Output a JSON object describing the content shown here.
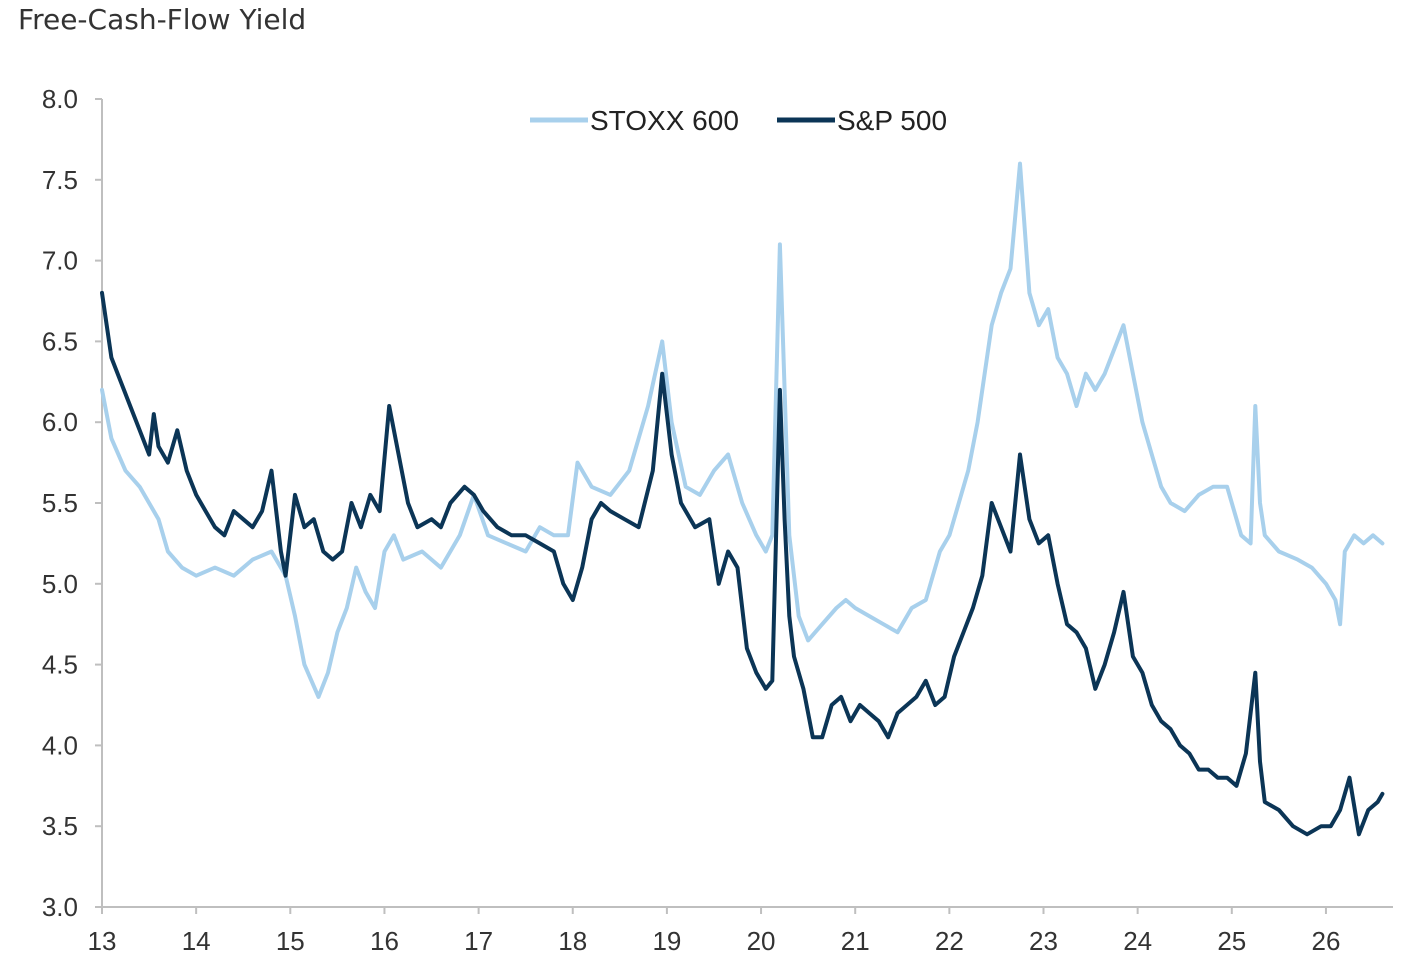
{
  "page": {
    "title": "Free-Cash-Flow Yield"
  },
  "colors": {
    "stoxx600": "#a8d0ec",
    "sp500": "#0b3556",
    "axis": "#bfbfbf",
    "text": "#333333"
  },
  "chart_data": {
    "type": "line",
    "title": "Free-Cash-Flow Yield",
    "xlabel": "",
    "ylabel": "",
    "x_ticks": [
      "13",
      "14",
      "15",
      "16",
      "17",
      "18",
      "19",
      "20",
      "21",
      "22",
      "23",
      "24",
      "25",
      "26"
    ],
    "y_ticks": [
      "3.0",
      "3.5",
      "4.0",
      "4.5",
      "5.0",
      "5.5",
      "6.0",
      "6.5",
      "7.0",
      "7.5",
      "8.0"
    ],
    "xlim": [
      13,
      26.6
    ],
    "ylim": [
      3.0,
      8.0
    ],
    "grid": false,
    "legend": "top-center",
    "series": [
      {
        "name": "STOXX 600",
        "color": "#a8d0ec",
        "points": [
          [
            13.0,
            6.2
          ],
          [
            13.1,
            5.9
          ],
          [
            13.25,
            5.7
          ],
          [
            13.4,
            5.6
          ],
          [
            13.5,
            5.5
          ],
          [
            13.6,
            5.4
          ],
          [
            13.7,
            5.2
          ],
          [
            13.85,
            5.1
          ],
          [
            14.0,
            5.05
          ],
          [
            14.2,
            5.1
          ],
          [
            14.4,
            5.05
          ],
          [
            14.6,
            5.15
          ],
          [
            14.8,
            5.2
          ],
          [
            14.95,
            5.05
          ],
          [
            15.05,
            4.8
          ],
          [
            15.15,
            4.5
          ],
          [
            15.3,
            4.3
          ],
          [
            15.4,
            4.45
          ],
          [
            15.5,
            4.7
          ],
          [
            15.6,
            4.85
          ],
          [
            15.7,
            5.1
          ],
          [
            15.8,
            4.95
          ],
          [
            15.9,
            4.85
          ],
          [
            16.0,
            5.2
          ],
          [
            16.1,
            5.3
          ],
          [
            16.2,
            5.15
          ],
          [
            16.4,
            5.2
          ],
          [
            16.6,
            5.1
          ],
          [
            16.8,
            5.3
          ],
          [
            16.95,
            5.55
          ],
          [
            17.1,
            5.3
          ],
          [
            17.3,
            5.25
          ],
          [
            17.5,
            5.2
          ],
          [
            17.65,
            5.35
          ],
          [
            17.8,
            5.3
          ],
          [
            17.95,
            5.3
          ],
          [
            18.05,
            5.75
          ],
          [
            18.2,
            5.6
          ],
          [
            18.4,
            5.55
          ],
          [
            18.6,
            5.7
          ],
          [
            18.8,
            6.1
          ],
          [
            18.95,
            6.5
          ],
          [
            19.05,
            6.0
          ],
          [
            19.2,
            5.6
          ],
          [
            19.35,
            5.55
          ],
          [
            19.5,
            5.7
          ],
          [
            19.65,
            5.8
          ],
          [
            19.8,
            5.5
          ],
          [
            19.95,
            5.3
          ],
          [
            20.05,
            5.2
          ],
          [
            20.12,
            5.3
          ],
          [
            20.2,
            7.1
          ],
          [
            20.25,
            6.2
          ],
          [
            20.3,
            5.3
          ],
          [
            20.4,
            4.8
          ],
          [
            20.5,
            4.65
          ],
          [
            20.65,
            4.75
          ],
          [
            20.8,
            4.85
          ],
          [
            20.9,
            4.9
          ],
          [
            21.0,
            4.85
          ],
          [
            21.15,
            4.8
          ],
          [
            21.3,
            4.75
          ],
          [
            21.45,
            4.7
          ],
          [
            21.6,
            4.85
          ],
          [
            21.75,
            4.9
          ],
          [
            21.9,
            5.2
          ],
          [
            22.0,
            5.3
          ],
          [
            22.1,
            5.5
          ],
          [
            22.2,
            5.7
          ],
          [
            22.3,
            6.0
          ],
          [
            22.45,
            6.6
          ],
          [
            22.55,
            6.8
          ],
          [
            22.65,
            6.95
          ],
          [
            22.75,
            7.6
          ],
          [
            22.85,
            6.8
          ],
          [
            22.95,
            6.6
          ],
          [
            23.05,
            6.7
          ],
          [
            23.15,
            6.4
          ],
          [
            23.25,
            6.3
          ],
          [
            23.35,
            6.1
          ],
          [
            23.45,
            6.3
          ],
          [
            23.55,
            6.2
          ],
          [
            23.65,
            6.3
          ],
          [
            23.75,
            6.45
          ],
          [
            23.85,
            6.6
          ],
          [
            23.95,
            6.3
          ],
          [
            24.05,
            6.0
          ],
          [
            24.15,
            5.8
          ],
          [
            24.25,
            5.6
          ],
          [
            24.35,
            5.5
          ],
          [
            24.5,
            5.45
          ],
          [
            24.65,
            5.55
          ],
          [
            24.8,
            5.6
          ],
          [
            24.95,
            5.6
          ],
          [
            25.1,
            5.3
          ],
          [
            25.2,
            5.25
          ],
          [
            25.25,
            6.1
          ],
          [
            25.3,
            5.5
          ],
          [
            25.35,
            5.3
          ],
          [
            25.5,
            5.2
          ],
          [
            25.7,
            5.15
          ],
          [
            25.85,
            5.1
          ],
          [
            26.0,
            5.0
          ],
          [
            26.1,
            4.9
          ],
          [
            26.15,
            4.75
          ],
          [
            26.2,
            5.2
          ],
          [
            26.3,
            5.3
          ],
          [
            26.4,
            5.25
          ],
          [
            26.5,
            5.3
          ],
          [
            26.6,
            5.25
          ]
        ]
      },
      {
        "name": "S&P 500",
        "color": "#0b3556",
        "points": [
          [
            13.0,
            6.8
          ],
          [
            13.05,
            6.6
          ],
          [
            13.1,
            6.4
          ],
          [
            13.2,
            6.25
          ],
          [
            13.3,
            6.1
          ],
          [
            13.4,
            5.95
          ],
          [
            13.5,
            5.8
          ],
          [
            13.55,
            6.05
          ],
          [
            13.6,
            5.85
          ],
          [
            13.7,
            5.75
          ],
          [
            13.8,
            5.95
          ],
          [
            13.9,
            5.7
          ],
          [
            14.0,
            5.55
          ],
          [
            14.1,
            5.45
          ],
          [
            14.2,
            5.35
          ],
          [
            14.3,
            5.3
          ],
          [
            14.4,
            5.45
          ],
          [
            14.5,
            5.4
          ],
          [
            14.6,
            5.35
          ],
          [
            14.7,
            5.45
          ],
          [
            14.8,
            5.7
          ],
          [
            14.9,
            5.2
          ],
          [
            14.95,
            5.05
          ],
          [
            15.05,
            5.55
          ],
          [
            15.15,
            5.35
          ],
          [
            15.25,
            5.4
          ],
          [
            15.35,
            5.2
          ],
          [
            15.45,
            5.15
          ],
          [
            15.55,
            5.2
          ],
          [
            15.65,
            5.5
          ],
          [
            15.75,
            5.35
          ],
          [
            15.85,
            5.55
          ],
          [
            15.95,
            5.45
          ],
          [
            16.05,
            6.1
          ],
          [
            16.15,
            5.8
          ],
          [
            16.25,
            5.5
          ],
          [
            16.35,
            5.35
          ],
          [
            16.5,
            5.4
          ],
          [
            16.6,
            5.35
          ],
          [
            16.7,
            5.5
          ],
          [
            16.85,
            5.6
          ],
          [
            16.95,
            5.55
          ],
          [
            17.05,
            5.45
          ],
          [
            17.2,
            5.35
          ],
          [
            17.35,
            5.3
          ],
          [
            17.5,
            5.3
          ],
          [
            17.65,
            5.25
          ],
          [
            17.8,
            5.2
          ],
          [
            17.9,
            5.0
          ],
          [
            18.0,
            4.9
          ],
          [
            18.1,
            5.1
          ],
          [
            18.2,
            5.4
          ],
          [
            18.3,
            5.5
          ],
          [
            18.4,
            5.45
          ],
          [
            18.55,
            5.4
          ],
          [
            18.7,
            5.35
          ],
          [
            18.85,
            5.7
          ],
          [
            18.95,
            6.3
          ],
          [
            19.05,
            5.8
          ],
          [
            19.15,
            5.5
          ],
          [
            19.3,
            5.35
          ],
          [
            19.45,
            5.4
          ],
          [
            19.55,
            5.0
          ],
          [
            19.65,
            5.2
          ],
          [
            19.75,
            5.1
          ],
          [
            19.85,
            4.6
          ],
          [
            19.95,
            4.45
          ],
          [
            20.05,
            4.35
          ],
          [
            20.12,
            4.4
          ],
          [
            20.2,
            6.2
          ],
          [
            20.25,
            5.4
          ],
          [
            20.3,
            4.8
          ],
          [
            20.35,
            4.55
          ],
          [
            20.45,
            4.35
          ],
          [
            20.55,
            4.05
          ],
          [
            20.65,
            4.05
          ],
          [
            20.75,
            4.25
          ],
          [
            20.85,
            4.3
          ],
          [
            20.95,
            4.15
          ],
          [
            21.05,
            4.25
          ],
          [
            21.15,
            4.2
          ],
          [
            21.25,
            4.15
          ],
          [
            21.35,
            4.05
          ],
          [
            21.45,
            4.2
          ],
          [
            21.55,
            4.25
          ],
          [
            21.65,
            4.3
          ],
          [
            21.75,
            4.4
          ],
          [
            21.85,
            4.25
          ],
          [
            21.95,
            4.3
          ],
          [
            22.05,
            4.55
          ],
          [
            22.15,
            4.7
          ],
          [
            22.25,
            4.85
          ],
          [
            22.35,
            5.05
          ],
          [
            22.45,
            5.5
          ],
          [
            22.55,
            5.35
          ],
          [
            22.65,
            5.2
          ],
          [
            22.75,
            5.8
          ],
          [
            22.85,
            5.4
          ],
          [
            22.95,
            5.25
          ],
          [
            23.05,
            5.3
          ],
          [
            23.15,
            5.0
          ],
          [
            23.25,
            4.75
          ],
          [
            23.35,
            4.7
          ],
          [
            23.45,
            4.6
          ],
          [
            23.55,
            4.35
          ],
          [
            23.65,
            4.5
          ],
          [
            23.75,
            4.7
          ],
          [
            23.85,
            4.95
          ],
          [
            23.95,
            4.55
          ],
          [
            24.05,
            4.45
          ],
          [
            24.15,
            4.25
          ],
          [
            24.25,
            4.15
          ],
          [
            24.35,
            4.1
          ],
          [
            24.45,
            4.0
          ],
          [
            24.55,
            3.95
          ],
          [
            24.65,
            3.85
          ],
          [
            24.75,
            3.85
          ],
          [
            24.85,
            3.8
          ],
          [
            24.95,
            3.8
          ],
          [
            25.05,
            3.75
          ],
          [
            25.15,
            3.95
          ],
          [
            25.25,
            4.45
          ],
          [
            25.3,
            3.9
          ],
          [
            25.35,
            3.65
          ],
          [
            25.5,
            3.6
          ],
          [
            25.65,
            3.5
          ],
          [
            25.8,
            3.45
          ],
          [
            25.95,
            3.5
          ],
          [
            26.05,
            3.5
          ],
          [
            26.15,
            3.6
          ],
          [
            26.25,
            3.8
          ],
          [
            26.35,
            3.45
          ],
          [
            26.45,
            3.6
          ],
          [
            26.55,
            3.65
          ],
          [
            26.6,
            3.7
          ]
        ]
      }
    ]
  }
}
